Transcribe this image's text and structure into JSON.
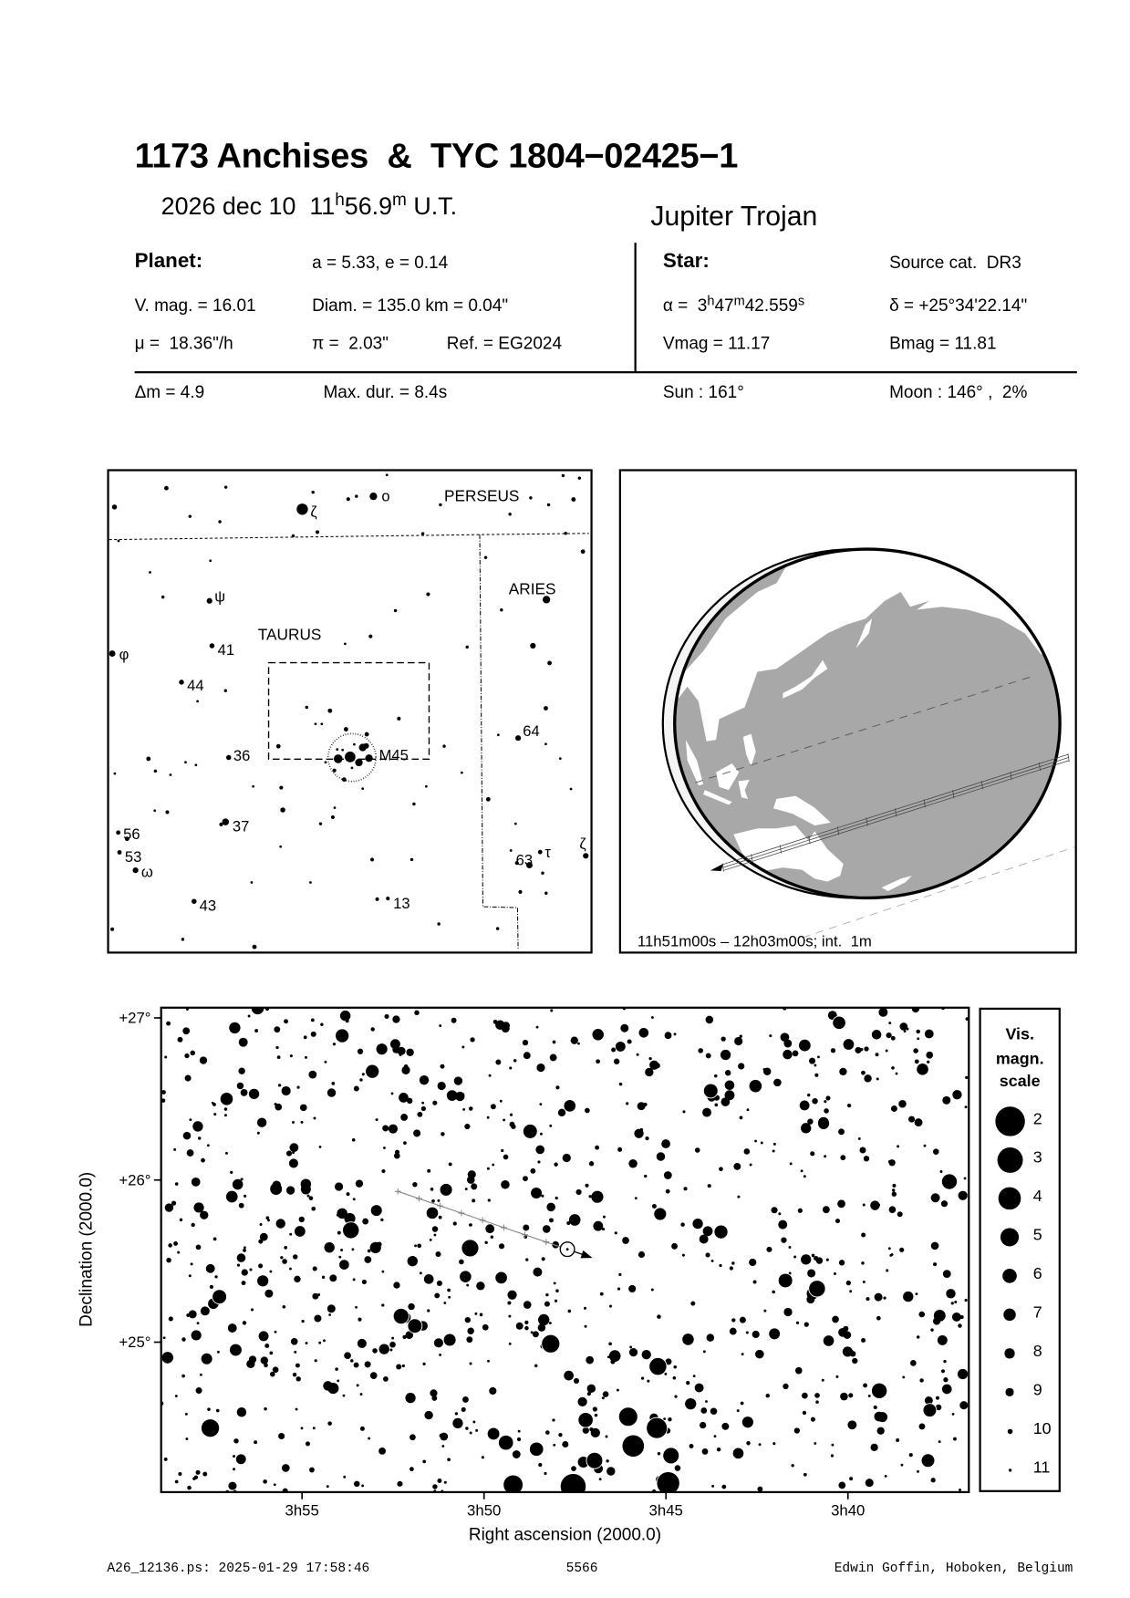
{
  "title": "1173 Anchises  &  TYC 1804−02425−1",
  "date": {
    "day": "2026 dec 10",
    "hour": "11",
    "hour_unit": "h",
    "minute": "56.9",
    "minute_unit": "m",
    "ut": "U.T."
  },
  "object_class": "Jupiter Trojan",
  "planet": {
    "heading": "Planet:",
    "orbit": "a = 5.33, e = 0.14",
    "vmag": "V. mag. = 16.01",
    "diam": "Diam. = 135.0 km = 0.04\"",
    "motion": "μ =  18.36\"/h",
    "parallax": "π =  2.03\"",
    "ref": "Ref. = EG2024"
  },
  "star": {
    "heading": "Star:",
    "source": "Source cat.  DR3",
    "ra_label": "α =  ",
    "ra_h": "3",
    "ra_h_unit": "h",
    "ra_m": "47",
    "ra_m_unit": "m",
    "ra_s": "42.559",
    "ra_s_unit": "s",
    "dec": "δ = +25°34'22.14\"",
    "vmag": "Vmag = 11.17",
    "bmag": "Bmag = 11.81"
  },
  "event": {
    "dmag": "Δm = 4.9",
    "max_duration": "Max. dur. = 8.4s",
    "sun": "Sun : 161°",
    "moon": "Moon : 146° ,  2%"
  },
  "finder": {
    "constellations": [
      "PERSEUS",
      "ARIES",
      "TAURUS"
    ],
    "star_labels": [
      "ζ",
      "ο",
      "ψ",
      "41",
      "φ",
      "44",
      "36",
      "37",
      "56",
      "53",
      "ω",
      "43",
      "13",
      "64",
      "63",
      "τ",
      "ζ",
      "M45"
    ]
  },
  "globe": {
    "caption": "11h51m00s – 12h03m00s; int.  1m",
    "land_color": "#ffffff",
    "ocean_color": "#a8a8a8"
  },
  "legend": {
    "title_lines": [
      "Vis.",
      "magn.",
      "scale"
    ],
    "mags": [
      "2",
      "3",
      "4",
      "5",
      "6",
      "7",
      "8",
      "9",
      "10",
      "11"
    ]
  },
  "chart_data": {
    "type": "scatter",
    "title": "",
    "xlabel": "Right ascension (2000.0)",
    "ylabel": "Declination (2000.0)",
    "x_axis_reversed": true,
    "xlim_h": [
      3.9812,
      3.6113
    ],
    "ylim": [
      24.075,
      27.063
    ],
    "grid": false,
    "x_ticks": [
      {
        "label": "3h55",
        "ra_h": 3.91667
      },
      {
        "label": "3h50",
        "ra_h": 3.83333
      },
      {
        "label": "3h45",
        "ra_h": 3.75
      },
      {
        "label": "3h40",
        "ra_h": 3.66667
      }
    ],
    "y_ticks": [
      {
        "label": "+27°",
        "dec": 27
      },
      {
        "label": "+26°",
        "dec": 26
      },
      {
        "label": "+25°",
        "dec": 25
      }
    ],
    "target": {
      "ra_h": 3.79516,
      "dec": 25.5728
    },
    "path": {
      "start": {
        "ra_h": 3.8728,
        "dec": 25.93
      },
      "end": {
        "ra_h": 3.79516,
        "dec": 25.5728
      }
    },
    "bright_stars": [
      {
        "ra_h": 3.7925,
        "dec": 24.11,
        "mag": 2.9
      },
      {
        "ra_h": 3.749,
        "dec": 24.13,
        "mag": 3.7
      },
      {
        "ra_h": 3.765,
        "dec": 24.36,
        "mag": 3.9
      },
      {
        "ra_h": 3.7542,
        "dec": 24.47,
        "mag": 4.3
      },
      {
        "ra_h": 3.82,
        "dec": 24.12,
        "mag": 4.6
      },
      {
        "ra_h": 3.7673,
        "dec": 24.54,
        "mag": 4.8
      },
      {
        "ra_h": 3.7537,
        "dec": 24.85,
        "mag": 5.2
      },
      {
        "ra_h": 3.8028,
        "dec": 24.99,
        "mag": 5.0
      },
      {
        "ra_h": 3.9587,
        "dec": 24.47,
        "mag": 5.0
      },
      {
        "ra_h": 3.8397,
        "dec": 25.58,
        "mag": 5.3
      },
      {
        "ra_h": 3.8943,
        "dec": 25.69,
        "mag": 5.5
      },
      {
        "ra_h": 3.6808,
        "dec": 25.33,
        "mag": 5.5
      },
      {
        "ra_h": 3.6202,
        "dec": 25.99,
        "mag": 5.8
      },
      {
        "ra_h": 3.6523,
        "dec": 24.7,
        "mag": 5.8
      },
      {
        "ra_h": 3.6953,
        "dec": 25.38,
        "mag": 6.2
      },
      {
        "ra_h": 3.8122,
        "dec": 26.3,
        "mag": 6.2
      },
      {
        "ra_h": 3.8713,
        "dec": 25.16,
        "mag": 5.8
      },
      {
        "ra_h": 3.865,
        "dec": 25.1,
        "mag": 6.2
      },
      {
        "ra_h": 3.9545,
        "dec": 25.28,
        "mag": 6.2
      },
      {
        "ra_h": 3.8233,
        "dec": 24.38,
        "mag": 6.0
      },
      {
        "ra_h": 3.7477,
        "dec": 24.3,
        "mag": 5.6
      },
      {
        "ra_h": 3.7827,
        "dec": 24.27,
        "mag": 5.6
      },
      {
        "ra_h": 3.7868,
        "dec": 24.52,
        "mag": 6.0
      },
      {
        "ra_h": 3.7295,
        "dec": 26.55,
        "mag": 6.2
      },
      {
        "ra_h": 3.7248,
        "dec": 25.68,
        "mag": 6.4
      },
      {
        "ra_h": 3.8983,
        "dec": 26.89,
        "mag": 6.4
      },
      {
        "ra_h": 3.8845,
        "dec": 26.67,
        "mag": 6.4
      },
      {
        "ra_h": 3.9512,
        "dec": 26.5,
        "mag": 6.6
      },
      {
        "ra_h": 3.709,
        "dec": 26.58,
        "mag": 6.6
      },
      {
        "ra_h": 3.6707,
        "dec": 26.97,
        "mag": 6.6
      },
      {
        "ra_h": 3.937,
        "dec": 27.06,
        "mag": 6.6
      },
      {
        "ra_h": 3.9908,
        "dec": 24.08,
        "mag": 6.0
      },
      {
        "ra_h": 3.6292,
        "dec": 24.58,
        "mag": 6.5
      },
      {
        "ra_h": 3.8093,
        "dec": 24.34,
        "mag": 6.3
      },
      {
        "ra_h": 3.63,
        "dec": 24.27,
        "mag": 6.5
      }
    ]
  },
  "footer": {
    "file": "A26_12136.ps: 2025-01-29 17:58:46",
    "number": "5566",
    "author": "Edwin Goffin, Hoboken, Belgium"
  }
}
